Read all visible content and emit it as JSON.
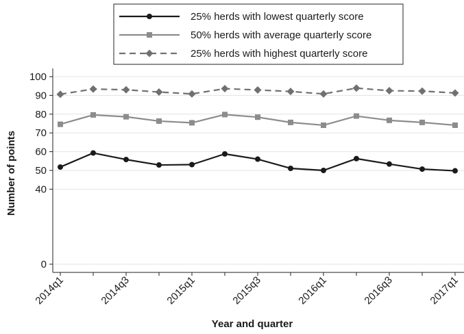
{
  "chart_data": {
    "type": "line",
    "xlabel": "Year and quarter",
    "ylabel": "Number of points",
    "ylim": [
      0,
      100
    ],
    "yticks": [
      0,
      40,
      50,
      60,
      70,
      80,
      90,
      100
    ],
    "grid": "horizontal",
    "legend_placement": "top",
    "categories": [
      "2014q1",
      "2014q2",
      "2014q3",
      "2014q4",
      "2015q1",
      "2015q2",
      "2015q3",
      "2015q4",
      "2016q1",
      "2016q2",
      "2016q3",
      "2016q4",
      "2017q1"
    ],
    "x_tick_labels": [
      "2014q1",
      "",
      "2014q3",
      "",
      "2015q1",
      "",
      "2015q3",
      "",
      "2016q1",
      "",
      "2016q3",
      "",
      "2017q1"
    ],
    "series": [
      {
        "name": "25% herds with lowest quarterly score",
        "color": "#1a1a1a",
        "dash": "solid",
        "marker": "circle",
        "values": [
          51.8,
          59.3,
          55.8,
          52.9,
          53.1,
          58.8,
          56.0,
          51.1,
          50.0,
          56.3,
          53.4,
          50.7,
          49.8
        ]
      },
      {
        "name": "50% herds with average quarterly score",
        "color": "#8c8c8c",
        "dash": "solid",
        "marker": "square",
        "values": [
          74.6,
          79.6,
          78.6,
          76.3,
          75.4,
          79.8,
          78.4,
          75.6,
          74.1,
          79.0,
          76.7,
          75.6,
          74.1
        ]
      },
      {
        "name": "25% herds with highest quarterly score",
        "color": "#707070",
        "dash": "dashed",
        "marker": "diamond",
        "values": [
          90.6,
          93.4,
          93.0,
          91.8,
          90.8,
          93.6,
          92.9,
          92.1,
          90.8,
          93.9,
          92.5,
          92.3,
          91.3
        ]
      }
    ]
  }
}
